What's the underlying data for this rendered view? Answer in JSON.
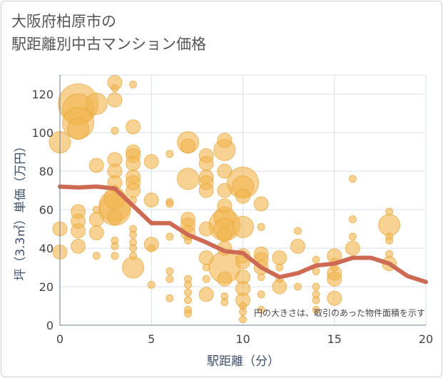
{
  "chart_data": {
    "type": "scatter",
    "title_lines": [
      "大阪府柏原市の",
      "駅距離別中古マンション価格"
    ],
    "xlabel": "駅距離（分）",
    "ylabel": "坪（3.3㎡）単価（万円）",
    "xlim": [
      0,
      20
    ],
    "ylim": [
      0,
      130
    ],
    "xticks": [
      0,
      5,
      10,
      15,
      20
    ],
    "yticks": [
      0,
      20,
      40,
      60,
      80,
      100,
      120
    ],
    "grid": true,
    "annotation": "円の大きさは、取引のあった物件面積を示す",
    "colors": {
      "bubble": "#f2b650",
      "bubble_edge": "#e6a53a",
      "line": "#cd6a53",
      "grid": "#d9e0ea"
    },
    "series": [
      {
        "kind": "bubbles",
        "points": [
          {
            "x": 0,
            "y": 95,
            "s": 2
          },
          {
            "x": 0,
            "y": 50,
            "s": 1
          },
          {
            "x": 0,
            "y": 38,
            "s": 1
          },
          {
            "x": 1,
            "y": 115,
            "s": 4
          },
          {
            "x": 1,
            "y": 112,
            "s": 3
          },
          {
            "x": 1,
            "y": 105,
            "s": 3
          },
          {
            "x": 1,
            "y": 102,
            "s": 2
          },
          {
            "x": 1,
            "y": 59,
            "s": 1
          },
          {
            "x": 1,
            "y": 54,
            "s": 1
          },
          {
            "x": 1,
            "y": 49,
            "s": 1
          },
          {
            "x": 1,
            "y": 41,
            "s": 1
          },
          {
            "x": 2,
            "y": 115,
            "s": 2
          },
          {
            "x": 2,
            "y": 83,
            "s": 1
          },
          {
            "x": 2,
            "y": 60,
            "s": 0
          },
          {
            "x": 2,
            "y": 55,
            "s": 1
          },
          {
            "x": 2,
            "y": 48,
            "s": 1
          },
          {
            "x": 2,
            "y": 36,
            "s": 0
          },
          {
            "x": 3,
            "y": 126,
            "s": 1
          },
          {
            "x": 3,
            "y": 123,
            "s": 0
          },
          {
            "x": 3,
            "y": 117,
            "s": 1
          },
          {
            "x": 3,
            "y": 101,
            "s": 0
          },
          {
            "x": 3,
            "y": 86,
            "s": 1
          },
          {
            "x": 3,
            "y": 80,
            "s": 1
          },
          {
            "x": 3,
            "y": 74,
            "s": 1
          },
          {
            "x": 3,
            "y": 71,
            "s": 0
          },
          {
            "x": 3,
            "y": 66,
            "s": 2
          },
          {
            "x": 3,
            "y": 62,
            "s": 3
          },
          {
            "x": 3,
            "y": 60,
            "s": 3
          },
          {
            "x": 3,
            "y": 56,
            "s": 1
          },
          {
            "x": 3,
            "y": 44,
            "s": 0
          },
          {
            "x": 3,
            "y": 41,
            "s": 0
          },
          {
            "x": 3,
            "y": 36,
            "s": 0
          },
          {
            "x": 4,
            "y": 125,
            "s": 0
          },
          {
            "x": 4,
            "y": 103,
            "s": 1
          },
          {
            "x": 4,
            "y": 90,
            "s": 1
          },
          {
            "x": 4,
            "y": 88,
            "s": 1
          },
          {
            "x": 4,
            "y": 84,
            "s": 1
          },
          {
            "x": 4,
            "y": 77,
            "s": 1
          },
          {
            "x": 4,
            "y": 74,
            "s": 1
          },
          {
            "x": 4,
            "y": 70,
            "s": 1
          },
          {
            "x": 4,
            "y": 65,
            "s": 0
          },
          {
            "x": 4,
            "y": 50,
            "s": 0
          },
          {
            "x": 4,
            "y": 47,
            "s": 0
          },
          {
            "x": 4,
            "y": 43,
            "s": 0
          },
          {
            "x": 4,
            "y": 40,
            "s": 0
          },
          {
            "x": 4,
            "y": 36,
            "s": 0
          },
          {
            "x": 4,
            "y": 30,
            "s": 2
          },
          {
            "x": 5,
            "y": 85,
            "s": 1
          },
          {
            "x": 5,
            "y": 65,
            "s": 1
          },
          {
            "x": 5,
            "y": 42,
            "s": 1
          },
          {
            "x": 5,
            "y": 40,
            "s": 0
          },
          {
            "x": 5,
            "y": 21,
            "s": 0
          },
          {
            "x": 6,
            "y": 89,
            "s": 0
          },
          {
            "x": 6,
            "y": 64,
            "s": 0
          },
          {
            "x": 6,
            "y": 63,
            "s": 0
          },
          {
            "x": 6,
            "y": 46,
            "s": 0
          },
          {
            "x": 6,
            "y": 28,
            "s": 0
          },
          {
            "x": 6,
            "y": 24,
            "s": 0
          },
          {
            "x": 6,
            "y": 14,
            "s": 0
          },
          {
            "x": 7,
            "y": 95,
            "s": 2
          },
          {
            "x": 7,
            "y": 93,
            "s": 1
          },
          {
            "x": 7,
            "y": 76,
            "s": 2
          },
          {
            "x": 7,
            "y": 55,
            "s": 1
          },
          {
            "x": 7,
            "y": 52,
            "s": 1
          },
          {
            "x": 7,
            "y": 48,
            "s": 1
          },
          {
            "x": 7,
            "y": 46,
            "s": 0
          },
          {
            "x": 7,
            "y": 44,
            "s": 0
          },
          {
            "x": 7,
            "y": 24,
            "s": 0
          },
          {
            "x": 7,
            "y": 21,
            "s": 0
          },
          {
            "x": 7,
            "y": 17,
            "s": 0
          },
          {
            "x": 7,
            "y": 13,
            "s": 0
          },
          {
            "x": 7,
            "y": 8,
            "s": 0
          },
          {
            "x": 7,
            "y": 6,
            "s": 0
          },
          {
            "x": 8,
            "y": 88,
            "s": 1
          },
          {
            "x": 8,
            "y": 84,
            "s": 1
          },
          {
            "x": 8,
            "y": 77,
            "s": 1
          },
          {
            "x": 8,
            "y": 74,
            "s": 1
          },
          {
            "x": 8,
            "y": 70,
            "s": 1
          },
          {
            "x": 8,
            "y": 50,
            "s": 1
          },
          {
            "x": 8,
            "y": 35,
            "s": 1
          },
          {
            "x": 8,
            "y": 30,
            "s": 0
          },
          {
            "x": 8,
            "y": 24,
            "s": 0
          },
          {
            "x": 8,
            "y": 16,
            "s": 1
          },
          {
            "x": 9,
            "y": 96,
            "s": 1
          },
          {
            "x": 9,
            "y": 91,
            "s": 2
          },
          {
            "x": 9,
            "y": 80,
            "s": 1
          },
          {
            "x": 9,
            "y": 70,
            "s": 1
          },
          {
            "x": 9,
            "y": 62,
            "s": 1
          },
          {
            "x": 9,
            "y": 56,
            "s": 2
          },
          {
            "x": 9,
            "y": 52,
            "s": 3
          },
          {
            "x": 9,
            "y": 50,
            "s": 2
          },
          {
            "x": 9,
            "y": 47,
            "s": 1
          },
          {
            "x": 9,
            "y": 40,
            "s": 1
          },
          {
            "x": 9,
            "y": 30,
            "s": 3
          },
          {
            "x": 9,
            "y": 24,
            "s": 1
          },
          {
            "x": 9,
            "y": 15,
            "s": 0
          },
          {
            "x": 9,
            "y": 12,
            "s": 0
          },
          {
            "x": 10,
            "y": 74,
            "s": 3
          },
          {
            "x": 10,
            "y": 72,
            "s": 2
          },
          {
            "x": 10,
            "y": 67,
            "s": 1
          },
          {
            "x": 10,
            "y": 51,
            "s": 2
          },
          {
            "x": 10,
            "y": 36,
            "s": 1
          },
          {
            "x": 10,
            "y": 33,
            "s": 1
          },
          {
            "x": 10,
            "y": 25,
            "s": 1
          },
          {
            "x": 10,
            "y": 19,
            "s": 1
          },
          {
            "x": 10,
            "y": 13,
            "s": 1
          },
          {
            "x": 10,
            "y": 10,
            "s": 0
          },
          {
            "x": 10,
            "y": 7,
            "s": 0
          },
          {
            "x": 10,
            "y": 3,
            "s": 0
          },
          {
            "x": 11,
            "y": 63,
            "s": 1
          },
          {
            "x": 11,
            "y": 51,
            "s": 0
          },
          {
            "x": 11,
            "y": 37,
            "s": 1
          },
          {
            "x": 11,
            "y": 34,
            "s": 1
          },
          {
            "x": 11,
            "y": 30,
            "s": 1
          },
          {
            "x": 11,
            "y": 25,
            "s": 0
          },
          {
            "x": 11,
            "y": 16,
            "s": 0
          },
          {
            "x": 11,
            "y": 8,
            "s": 0
          },
          {
            "x": 12,
            "y": 35,
            "s": 1
          },
          {
            "x": 12,
            "y": 30,
            "s": 0
          },
          {
            "x": 12,
            "y": 24,
            "s": 0
          },
          {
            "x": 12,
            "y": 20,
            "s": 1
          },
          {
            "x": 13,
            "y": 49,
            "s": 0
          },
          {
            "x": 13,
            "y": 41,
            "s": 1
          },
          {
            "x": 13,
            "y": 20,
            "s": 0
          },
          {
            "x": 14,
            "y": 34,
            "s": 0
          },
          {
            "x": 14,
            "y": 28,
            "s": 0
          },
          {
            "x": 14,
            "y": 20,
            "s": 0
          },
          {
            "x": 14,
            "y": 16,
            "s": 0
          },
          {
            "x": 14,
            "y": 13,
            "s": 0
          },
          {
            "x": 14,
            "y": 8,
            "s": 0
          },
          {
            "x": 15,
            "y": 36,
            "s": 1
          },
          {
            "x": 15,
            "y": 33,
            "s": 0
          },
          {
            "x": 15,
            "y": 30,
            "s": 0
          },
          {
            "x": 15,
            "y": 27,
            "s": 1
          },
          {
            "x": 15,
            "y": 24,
            "s": 1
          },
          {
            "x": 15,
            "y": 14,
            "s": 1
          },
          {
            "x": 16,
            "y": 76,
            "s": 0
          },
          {
            "x": 16,
            "y": 55,
            "s": 0
          },
          {
            "x": 16,
            "y": 46,
            "s": 0
          },
          {
            "x": 16,
            "y": 40,
            "s": 1
          },
          {
            "x": 18,
            "y": 59,
            "s": 0
          },
          {
            "x": 18,
            "y": 52,
            "s": 2
          },
          {
            "x": 18,
            "y": 46,
            "s": 0
          },
          {
            "x": 18,
            "y": 44,
            "s": 0
          },
          {
            "x": 18,
            "y": 37,
            "s": 0
          },
          {
            "x": 18,
            "y": 32,
            "s": 1
          }
        ]
      },
      {
        "kind": "line",
        "x": [
          0,
          1,
          2,
          3,
          4,
          5,
          6,
          7,
          8,
          9,
          10,
          11,
          12,
          13,
          14,
          15,
          16,
          17,
          18,
          19,
          20
        ],
        "y": [
          72,
          71.5,
          72,
          71,
          62,
          53,
          53,
          47,
          43,
          38.5,
          37.5,
          30,
          25,
          27,
          31,
          32,
          35,
          35,
          32,
          25.5,
          22.5
        ]
      }
    ]
  }
}
